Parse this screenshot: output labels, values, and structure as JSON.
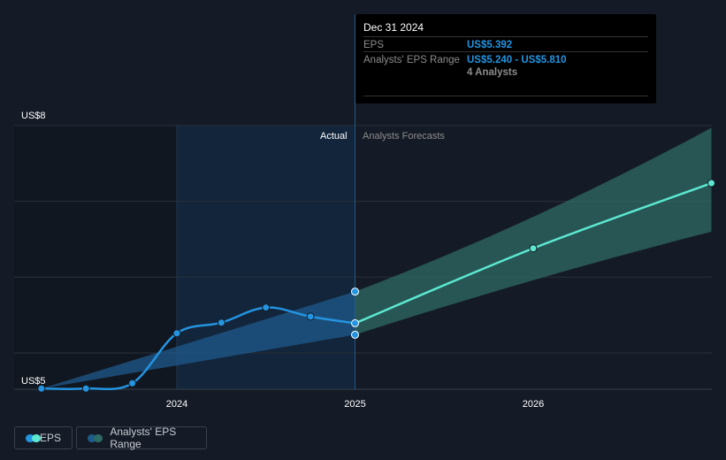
{
  "tooltip": {
    "date": "Dec 31 2024",
    "eps_label": "EPS",
    "eps_value": "US$5.392",
    "range_label": "Analysts' EPS Range",
    "range_value": "US$5.240 - US$5.810",
    "analysts": "4 Analysts"
  },
  "regions": {
    "actual": "Actual",
    "forecast": "Analysts Forecasts"
  },
  "legend": {
    "eps": "EPS",
    "range": "Analysts' EPS Range"
  },
  "colors": {
    "eps_actual": "#2394e0",
    "eps_forecast": "#5ce8d0",
    "range_past": "#1f5a8c",
    "range_forecast": "#2e6b66",
    "background": "#151b26"
  },
  "chart_data": {
    "type": "line",
    "ylim": [
      4.52,
      8
    ],
    "yticks": [
      {
        "value": 8,
        "label": "US$8"
      },
      {
        "value": 5,
        "label": "US$5"
      }
    ],
    "xticks": [
      {
        "value": 2024,
        "label": "2024"
      },
      {
        "value": 2025,
        "label": "2025"
      },
      {
        "value": 2026,
        "label": "2026"
      }
    ],
    "xlim": [
      2023.2,
      2027
    ],
    "grid": true,
    "series": [
      {
        "name": "EPS",
        "kind": "actual",
        "x": [
          2023.24,
          2023.49,
          2023.75,
          2024.0,
          2024.25,
          2024.5,
          2024.75,
          2025.0
        ],
        "y": [
          4.53,
          4.53,
          4.6,
          5.26,
          5.4,
          5.6,
          5.48,
          5.392
        ]
      },
      {
        "name": "EPS",
        "kind": "forecast",
        "x": [
          2025.0,
          2026.0,
          2027.0
        ],
        "y": [
          5.392,
          6.38,
          7.24
        ]
      }
    ],
    "range": {
      "name": "Analysts' EPS Range",
      "x": [
        2023.24,
        2025.0,
        2026.0,
        2027.0
      ],
      "low": [
        4.53,
        5.24,
        5.9,
        6.6
      ],
      "high": [
        4.53,
        5.81,
        6.9,
        7.97
      ]
    }
  }
}
